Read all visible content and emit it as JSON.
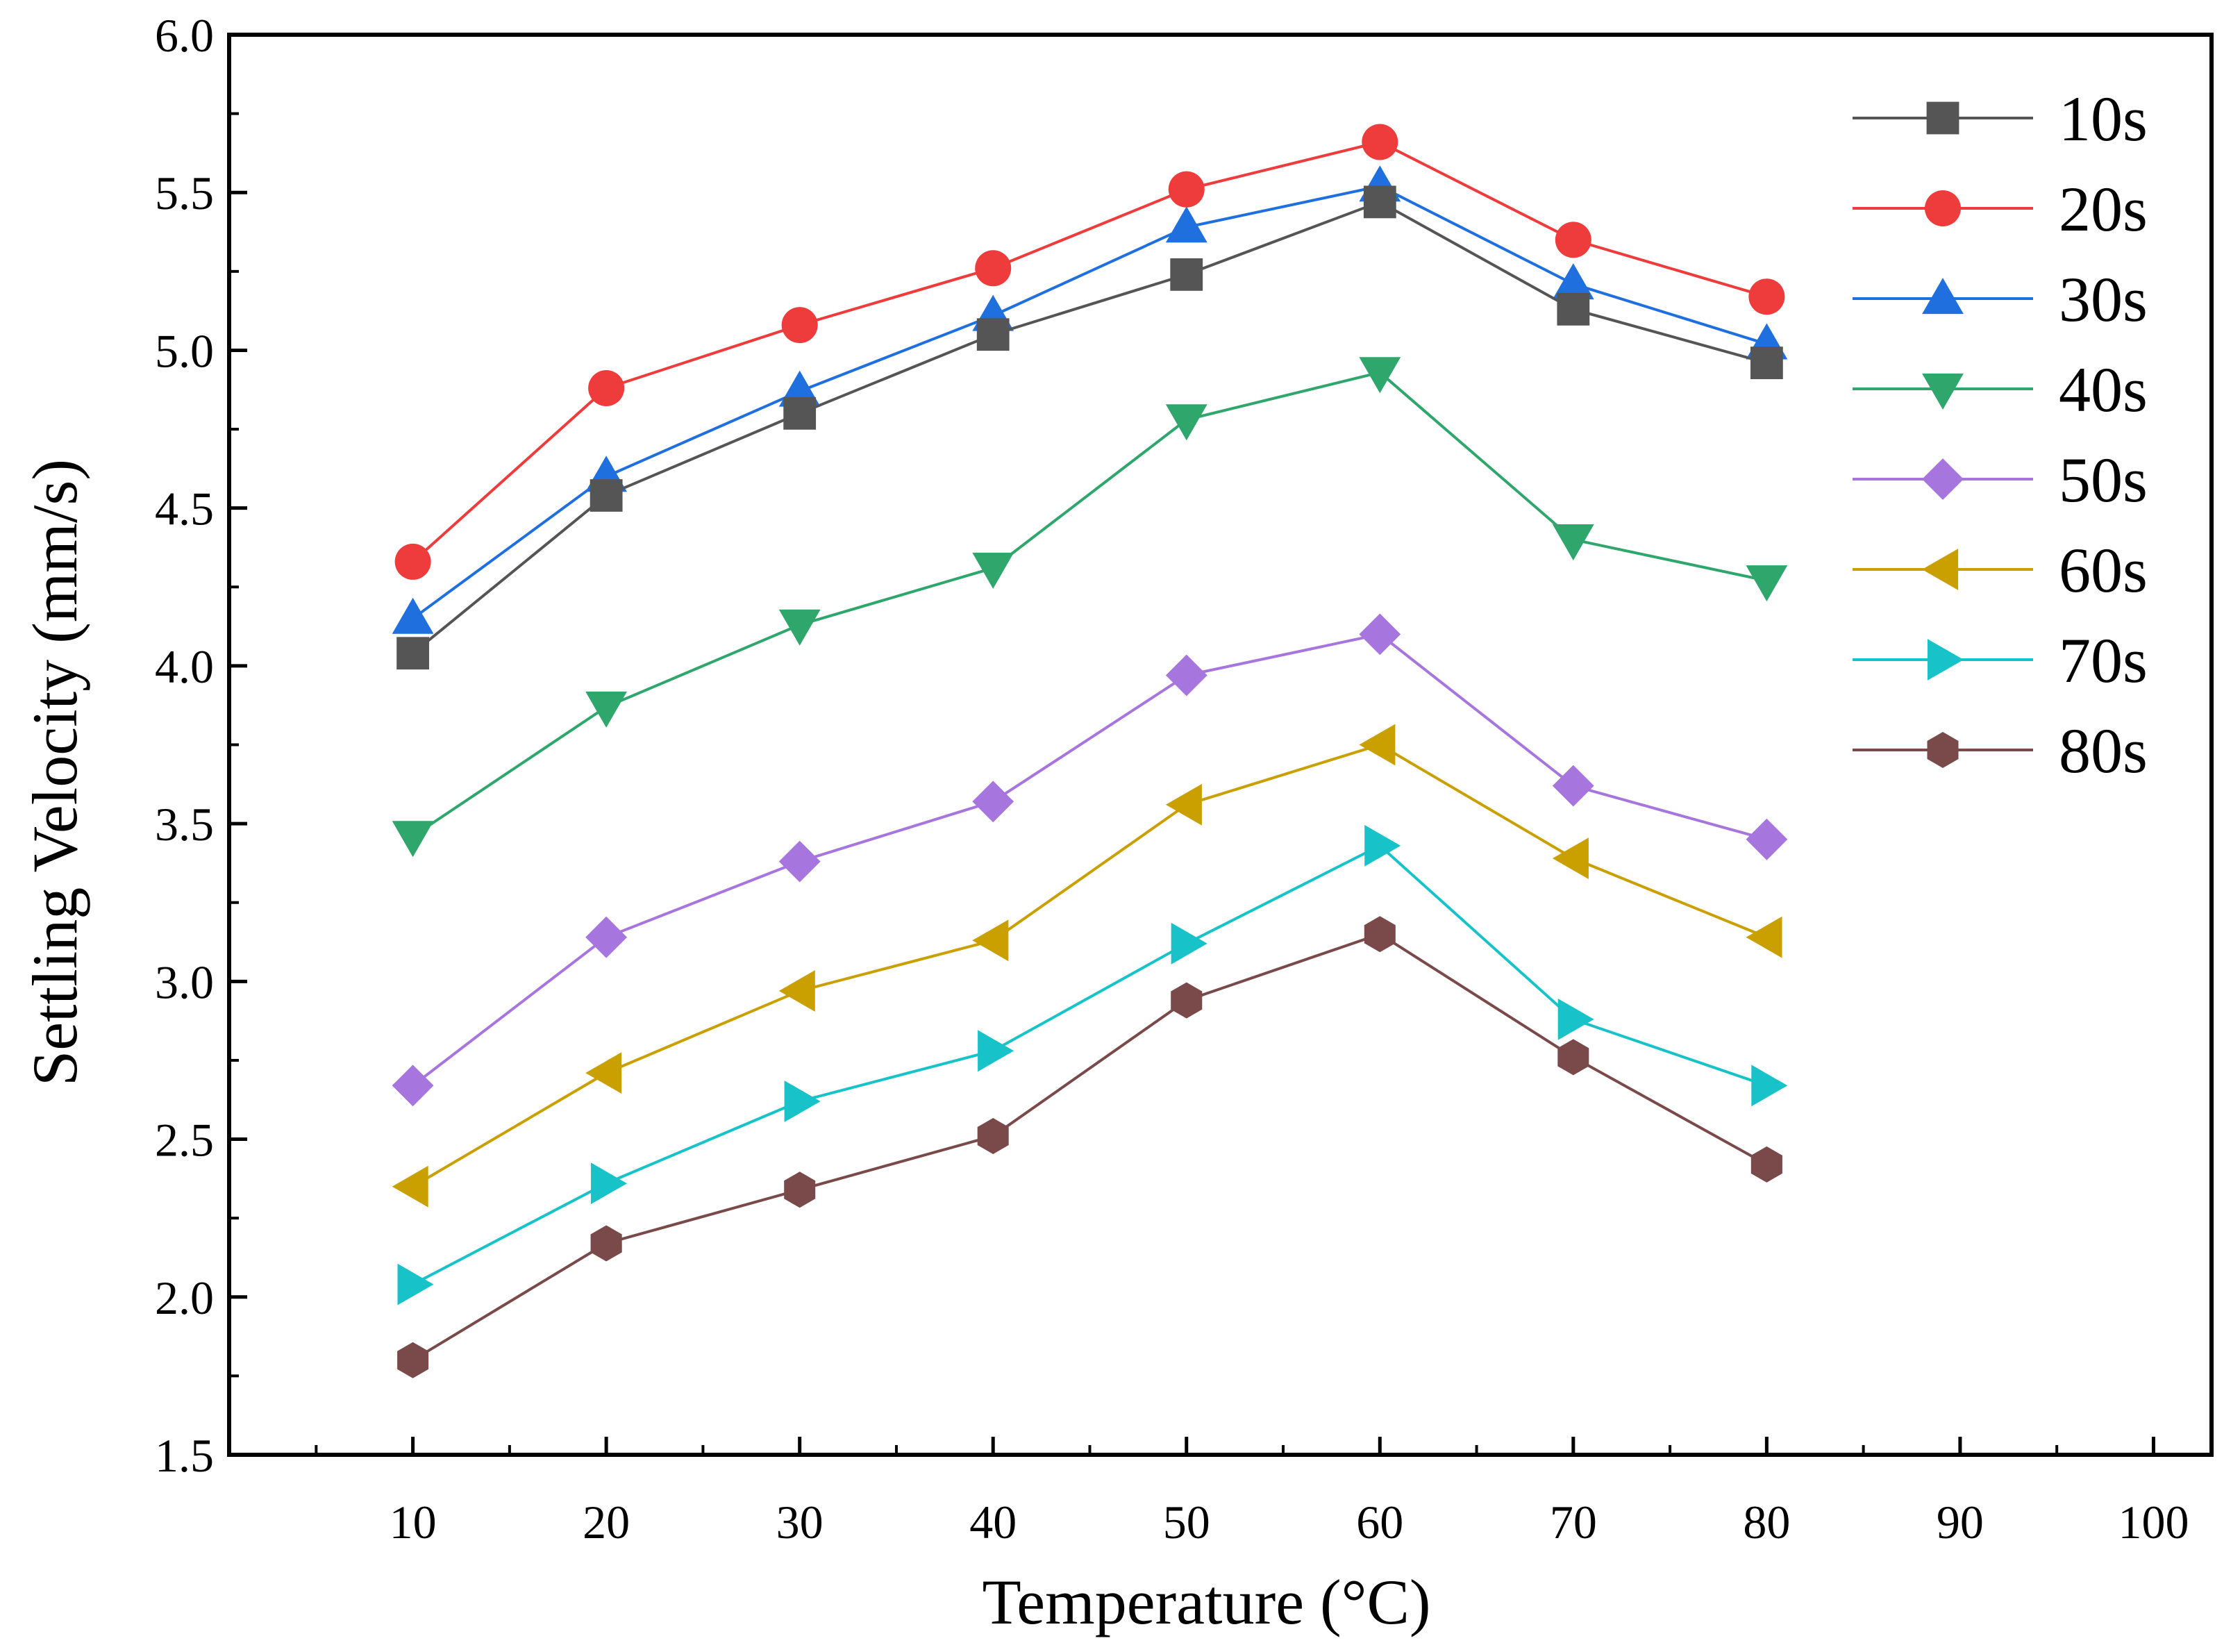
{
  "chart_data": {
    "type": "line",
    "title": "",
    "xlabel": "Temperature (°C)",
    "ylabel": "Settling Velocity (mm/s)",
    "xlim": [
      0.5,
      103
    ],
    "ylim": [
      1.5,
      6.0
    ],
    "x_ticks": [
      10,
      20,
      30,
      40,
      50,
      60,
      70,
      80,
      90,
      100
    ],
    "x_tick_labels": [
      "10",
      "20",
      "30",
      "40",
      "50",
      "60",
      "70",
      "80",
      "90",
      "100"
    ],
    "y_ticks": [
      1.5,
      2.0,
      2.5,
      3.0,
      3.5,
      4.0,
      4.5,
      5.0,
      5.5,
      6.0
    ],
    "y_tick_labels": [
      "1.5",
      "2.0",
      "2.5",
      "3.0",
      "3.5",
      "4.0",
      "4.5",
      "5.0",
      "5.5",
      "6.0"
    ],
    "grid": false,
    "legend_position": "top-right",
    "x": [
      10,
      20,
      30,
      40,
      50,
      60,
      70,
      80
    ],
    "series": [
      {
        "name": "10s",
        "color": "#555555",
        "marker": "square",
        "values": [
          4.04,
          4.54,
          4.8,
          5.05,
          5.24,
          5.47,
          5.13,
          4.96
        ]
      },
      {
        "name": "20s",
        "color": "#ee3b3b",
        "marker": "circle",
        "values": [
          4.33,
          4.88,
          5.08,
          5.26,
          5.51,
          5.66,
          5.35,
          5.17
        ]
      },
      {
        "name": "30s",
        "color": "#1f6fdf",
        "marker": "triangle-up",
        "values": [
          4.15,
          4.6,
          4.87,
          5.11,
          5.39,
          5.52,
          5.21,
          5.02
        ]
      },
      {
        "name": "40s",
        "color": "#2ea66c",
        "marker": "triangle-down",
        "values": [
          3.46,
          3.87,
          4.13,
          4.31,
          4.78,
          4.93,
          4.4,
          4.27
        ]
      },
      {
        "name": "50s",
        "color": "#a675dd",
        "marker": "diamond",
        "values": [
          2.67,
          3.14,
          3.38,
          3.57,
          3.97,
          4.1,
          3.62,
          3.45
        ]
      },
      {
        "name": "60s",
        "color": "#c9a000",
        "marker": "triangle-left",
        "values": [
          2.35,
          2.71,
          2.97,
          3.13,
          3.56,
          3.75,
          3.39,
          3.14
        ]
      },
      {
        "name": "70s",
        "color": "#17c3c8",
        "marker": "triangle-right",
        "values": [
          2.04,
          2.36,
          2.62,
          2.78,
          3.12,
          3.43,
          2.88,
          2.67
        ]
      },
      {
        "name": "80s",
        "color": "#7a4a4a",
        "marker": "hexagon",
        "values": [
          1.8,
          2.17,
          2.34,
          2.51,
          2.94,
          3.15,
          2.76,
          2.42
        ]
      }
    ]
  }
}
